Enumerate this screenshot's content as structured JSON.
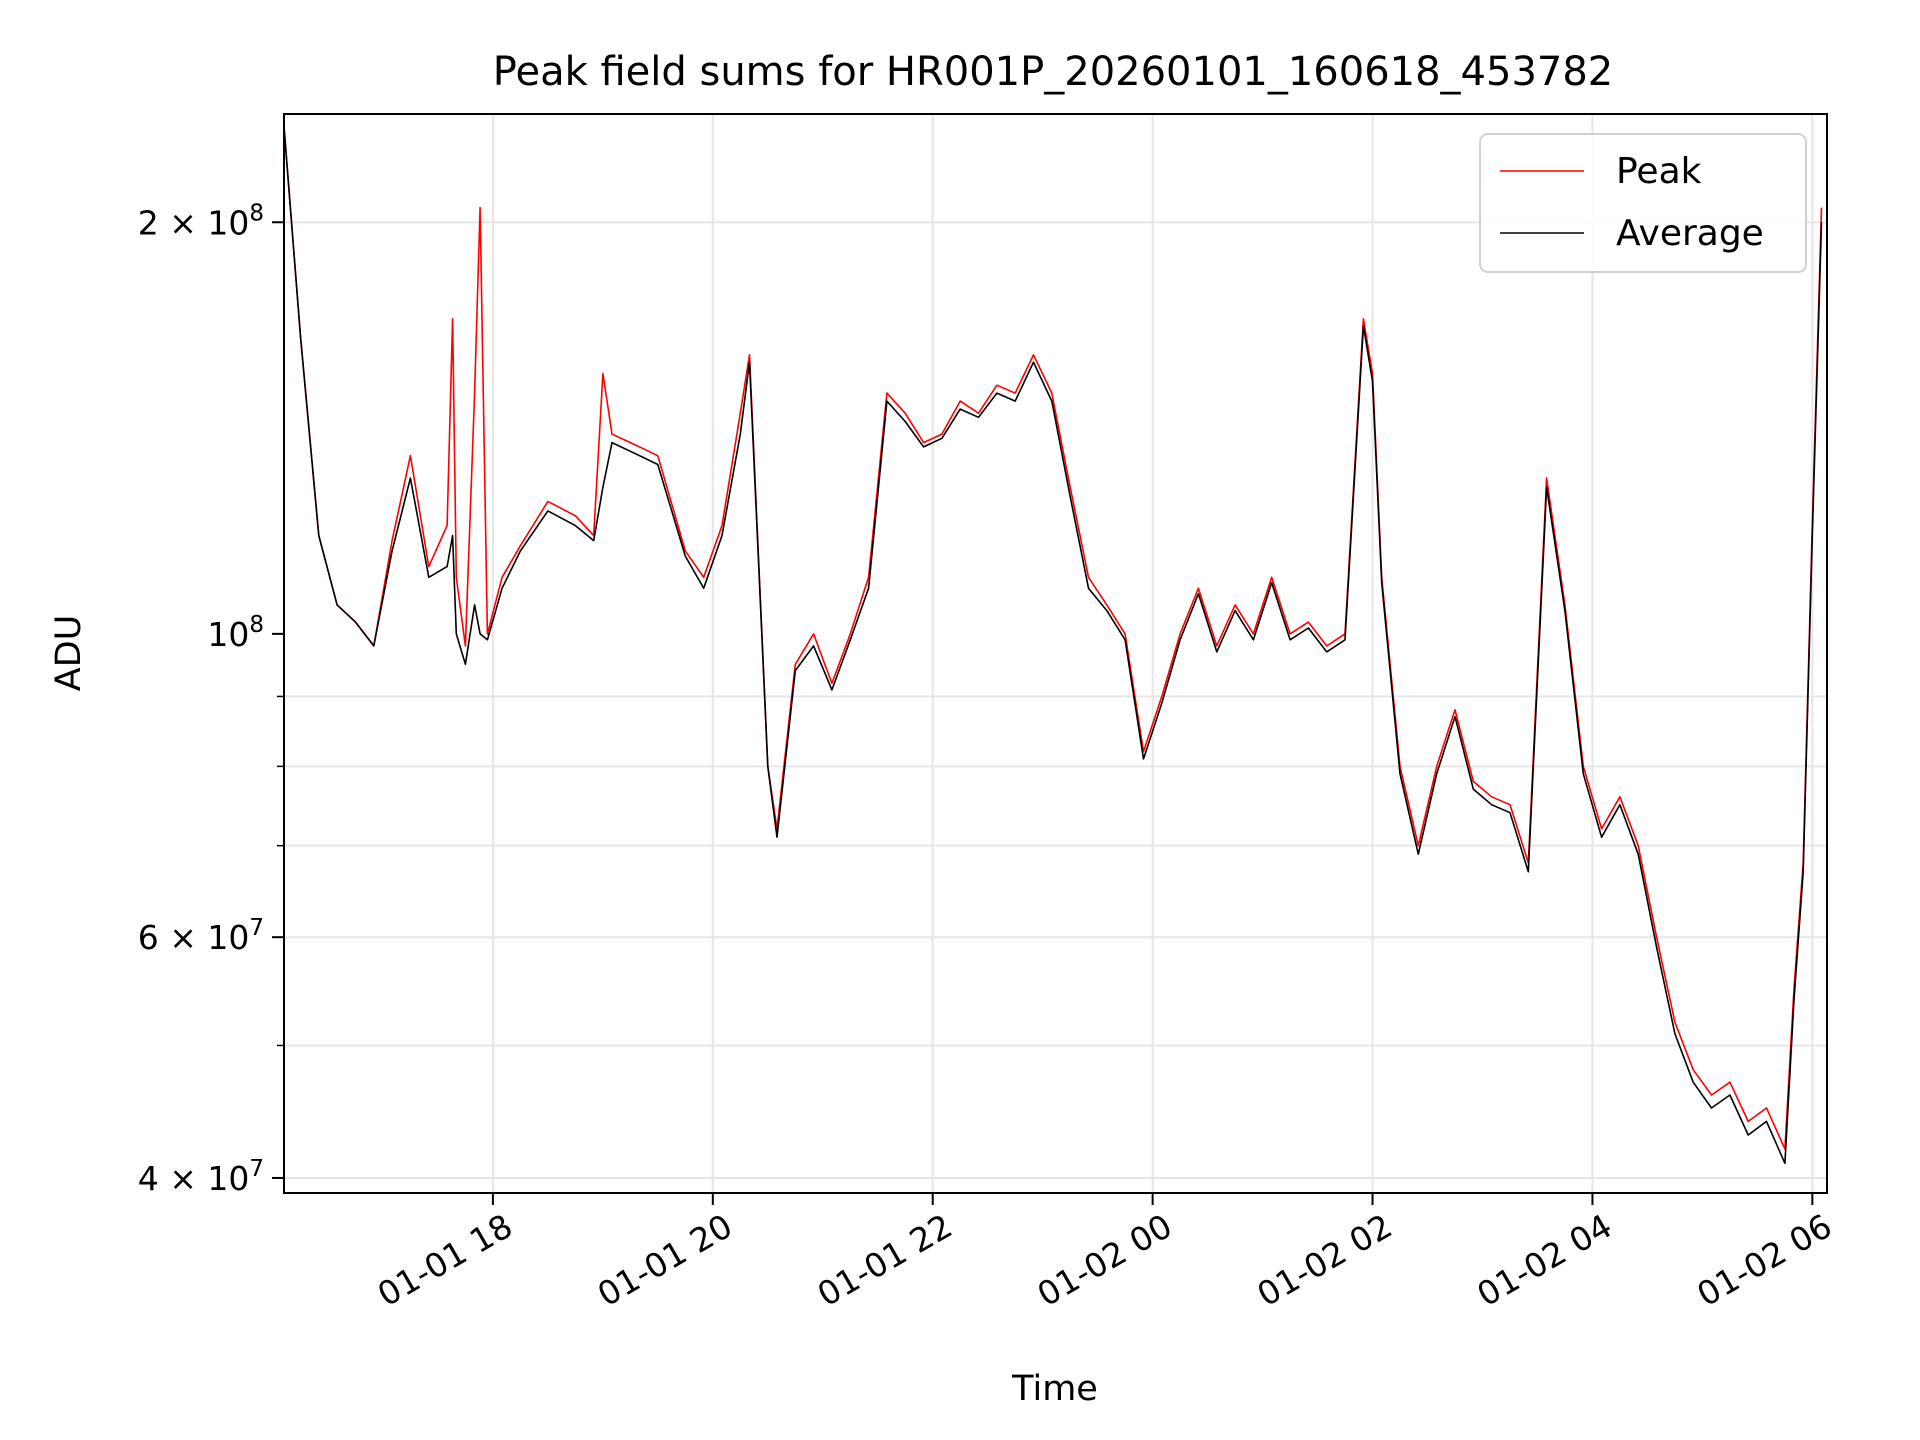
{
  "chart_data": {
    "type": "line",
    "title": "Peak field sums for HR001P_20260101_160618_453782",
    "xlabel": "Time",
    "ylabel": "ADU",
    "y_scale": "log",
    "ylim": [
      39000000,
      240000000
    ],
    "xlim": [
      "2026-01-01 16:06",
      "2026-01-02 06:08"
    ],
    "x_tick_labels": [
      "01-01 18",
      "01-01 20",
      "01-01 22",
      "01-02 00",
      "01-02 02",
      "01-02 04",
      "01-02 06"
    ],
    "x_tick_values": [
      "2026-01-01 18:00",
      "2026-01-01 20:00",
      "2026-01-01 22:00",
      "2026-01-02 00:00",
      "2026-01-02 02:00",
      "2026-01-02 04:00",
      "2026-01-02 06:00"
    ],
    "y_tick_labels": [
      {
        "value": 200000000,
        "base": "2 × 10",
        "exp": "8"
      },
      {
        "value": 100000000,
        "base": "10",
        "exp": "8"
      },
      {
        "value": 60000000,
        "base": "6 × 10",
        "exp": "7"
      },
      {
        "value": 40000000,
        "base": "4 × 10",
        "exp": "7"
      }
    ],
    "grid": true,
    "legend": {
      "placement": "top-right"
    },
    "series": [
      {
        "name": "Peak",
        "color": "#ff0000",
        "x": [
          "2026-01-01 16:06",
          "2026-01-01 16:15",
          "2026-01-01 16:25",
          "2026-01-01 16:35",
          "2026-01-01 16:45",
          "2026-01-01 16:55",
          "2026-01-01 17:05",
          "2026-01-01 17:15",
          "2026-01-01 17:25",
          "2026-01-01 17:35",
          "2026-01-01 17:38",
          "2026-01-01 17:40",
          "2026-01-01 17:45",
          "2026-01-01 17:50",
          "2026-01-01 17:53",
          "2026-01-01 17:57",
          "2026-01-01 18:05",
          "2026-01-01 18:15",
          "2026-01-01 18:30",
          "2026-01-01 18:45",
          "2026-01-01 18:55",
          "2026-01-01 19:00",
          "2026-01-01 19:05",
          "2026-01-01 19:15",
          "2026-01-01 19:30",
          "2026-01-01 19:45",
          "2026-01-01 19:55",
          "2026-01-01 20:05",
          "2026-01-01 20:15",
          "2026-01-01 20:20",
          "2026-01-01 20:30",
          "2026-01-01 20:35",
          "2026-01-01 20:45",
          "2026-01-01 20:55",
          "2026-01-01 21:05",
          "2026-01-01 21:15",
          "2026-01-01 21:25",
          "2026-01-01 21:35",
          "2026-01-01 21:45",
          "2026-01-01 21:55",
          "2026-01-01 22:05",
          "2026-01-01 22:15",
          "2026-01-01 22:25",
          "2026-01-01 22:35",
          "2026-01-01 22:45",
          "2026-01-01 22:55",
          "2026-01-01 23:05",
          "2026-01-01 23:15",
          "2026-01-01 23:25",
          "2026-01-01 23:35",
          "2026-01-01 23:45",
          "2026-01-01 23:55",
          "2026-01-02 00:05",
          "2026-01-02 00:15",
          "2026-01-02 00:25",
          "2026-01-02 00:35",
          "2026-01-02 00:45",
          "2026-01-02 00:55",
          "2026-01-02 01:05",
          "2026-01-02 01:15",
          "2026-01-02 01:25",
          "2026-01-02 01:35",
          "2026-01-02 01:45",
          "2026-01-02 01:55",
          "2026-01-02 02:00",
          "2026-01-02 02:05",
          "2026-01-02 02:15",
          "2026-01-02 02:25",
          "2026-01-02 02:35",
          "2026-01-02 02:45",
          "2026-01-02 02:55",
          "2026-01-02 03:05",
          "2026-01-02 03:15",
          "2026-01-02 03:25",
          "2026-01-02 03:35",
          "2026-01-02 03:45",
          "2026-01-02 03:55",
          "2026-01-02 04:05",
          "2026-01-02 04:15",
          "2026-01-02 04:25",
          "2026-01-02 04:35",
          "2026-01-02 04:45",
          "2026-01-02 04:55",
          "2026-01-02 05:05",
          "2026-01-02 05:15",
          "2026-01-02 05:25",
          "2026-01-02 05:35",
          "2026-01-02 05:45",
          "2026-01-02 05:50",
          "2026-01-02 05:55",
          "2026-01-02 06:00",
          "2026-01-02 06:05"
        ],
        "y": [
          235000000,
          165000000,
          118000000,
          105000000,
          102000000,
          98000000,
          117000000,
          135000000,
          112000000,
          120000000,
          170000000,
          110000000,
          98000000,
          150000000,
          205000000,
          100000000,
          110000000,
          116000000,
          125000000,
          122000000,
          118000000,
          155000000,
          140000000,
          138000000,
          135000000,
          115000000,
          110000000,
          120000000,
          145000000,
          160000000,
          80000000,
          72000000,
          95000000,
          100000000,
          92000000,
          100000000,
          110000000,
          150000000,
          145000000,
          138000000,
          140000000,
          148000000,
          145000000,
          152000000,
          150000000,
          160000000,
          150000000,
          128000000,
          110000000,
          105000000,
          100000000,
          82000000,
          90000000,
          100000000,
          108000000,
          98000000,
          105000000,
          100000000,
          110000000,
          100000000,
          102000000,
          98000000,
          100000000,
          170000000,
          155000000,
          110000000,
          80000000,
          70000000,
          80000000,
          88000000,
          78000000,
          76000000,
          75000000,
          68000000,
          130000000,
          105000000,
          80000000,
          72000000,
          76000000,
          70000000,
          60000000,
          52000000,
          48000000,
          46000000,
          47000000,
          44000000,
          45000000,
          42000000,
          55000000,
          68000000,
          120000000,
          205000000
        ]
      },
      {
        "name": "Average",
        "color": "#000000",
        "x": [
          "2026-01-01 16:06",
          "2026-01-01 16:15",
          "2026-01-01 16:25",
          "2026-01-01 16:35",
          "2026-01-01 16:45",
          "2026-01-01 16:55",
          "2026-01-01 17:05",
          "2026-01-01 17:15",
          "2026-01-01 17:25",
          "2026-01-01 17:35",
          "2026-01-01 17:38",
          "2026-01-01 17:40",
          "2026-01-01 17:45",
          "2026-01-01 17:50",
          "2026-01-01 17:53",
          "2026-01-01 17:57",
          "2026-01-01 18:05",
          "2026-01-01 18:15",
          "2026-01-01 18:30",
          "2026-01-01 18:45",
          "2026-01-01 18:55",
          "2026-01-01 19:00",
          "2026-01-01 19:05",
          "2026-01-01 19:15",
          "2026-01-01 19:30",
          "2026-01-01 19:45",
          "2026-01-01 19:55",
          "2026-01-01 20:05",
          "2026-01-01 20:15",
          "2026-01-01 20:20",
          "2026-01-01 20:30",
          "2026-01-01 20:35",
          "2026-01-01 20:45",
          "2026-01-01 20:55",
          "2026-01-01 21:05",
          "2026-01-01 21:15",
          "2026-01-01 21:25",
          "2026-01-01 21:35",
          "2026-01-01 21:45",
          "2026-01-01 21:55",
          "2026-01-01 22:05",
          "2026-01-01 22:15",
          "2026-01-01 22:25",
          "2026-01-01 22:35",
          "2026-01-01 22:45",
          "2026-01-01 22:55",
          "2026-01-01 23:05",
          "2026-01-01 23:15",
          "2026-01-01 23:25",
          "2026-01-01 23:35",
          "2026-01-01 23:45",
          "2026-01-01 23:55",
          "2026-01-02 00:05",
          "2026-01-02 00:15",
          "2026-01-02 00:25",
          "2026-01-02 00:35",
          "2026-01-02 00:45",
          "2026-01-02 00:55",
          "2026-01-02 01:05",
          "2026-01-02 01:15",
          "2026-01-02 01:25",
          "2026-01-02 01:35",
          "2026-01-02 01:45",
          "2026-01-02 01:55",
          "2026-01-02 02:00",
          "2026-01-02 02:05",
          "2026-01-02 02:15",
          "2026-01-02 02:25",
          "2026-01-02 02:35",
          "2026-01-02 02:45",
          "2026-01-02 02:55",
          "2026-01-02 03:05",
          "2026-01-02 03:15",
          "2026-01-02 03:25",
          "2026-01-02 03:35",
          "2026-01-02 03:45",
          "2026-01-02 03:55",
          "2026-01-02 04:05",
          "2026-01-02 04:15",
          "2026-01-02 04:25",
          "2026-01-02 04:35",
          "2026-01-02 04:45",
          "2026-01-02 04:55",
          "2026-01-02 05:05",
          "2026-01-02 05:15",
          "2026-01-02 05:25",
          "2026-01-02 05:35",
          "2026-01-02 05:45",
          "2026-01-02 05:50",
          "2026-01-02 05:55",
          "2026-01-02 06:00",
          "2026-01-02 06:05"
        ],
        "y": [
          235000000,
          165000000,
          118000000,
          105000000,
          102000000,
          98000000,
          115000000,
          130000000,
          110000000,
          112000000,
          118000000,
          100000000,
          95000000,
          105000000,
          100000000,
          99000000,
          108000000,
          115000000,
          123000000,
          120000000,
          117000000,
          128000000,
          138000000,
          136000000,
          133000000,
          114000000,
          108000000,
          118000000,
          140000000,
          158000000,
          80000000,
          71000000,
          94000000,
          98000000,
          91000000,
          99000000,
          108000000,
          148000000,
          143000000,
          137000000,
          139000000,
          146000000,
          144000000,
          150000000,
          148000000,
          158000000,
          148000000,
          126000000,
          108000000,
          104000000,
          99000000,
          81000000,
          89000000,
          99000000,
          107000000,
          97000000,
          104000000,
          99000000,
          109000000,
          99000000,
          101000000,
          97000000,
          99000000,
          168000000,
          153000000,
          109000000,
          79000000,
          69000000,
          79000000,
          87000000,
          77000000,
          75000000,
          74000000,
          67000000,
          128000000,
          104000000,
          79000000,
          71000000,
          75000000,
          69000000,
          59000000,
          51000000,
          47000000,
          45000000,
          46000000,
          43000000,
          44000000,
          41000000,
          54000000,
          67000000,
          118000000,
          200000000
        ]
      }
    ]
  }
}
